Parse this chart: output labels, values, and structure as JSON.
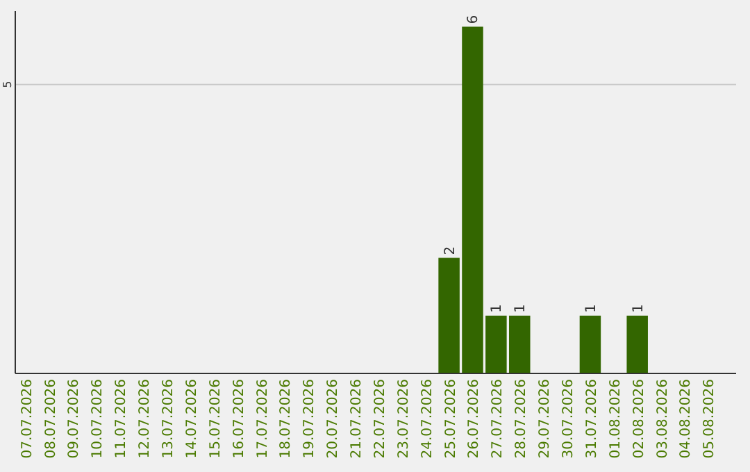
{
  "chart_data": {
    "type": "bar",
    "categories": [
      "07.07.2026",
      "08.07.2026",
      "09.07.2026",
      "10.07.2026",
      "11.07.2026",
      "12.07.2026",
      "13.07.2026",
      "14.07.2026",
      "15.07.2026",
      "16.07.2026",
      "17.07.2026",
      "18.07.2026",
      "19.07.2026",
      "20.07.2026",
      "21.07.2026",
      "22.07.2026",
      "23.07.2026",
      "24.07.2026",
      "25.07.2026",
      "26.07.2026",
      "27.07.2026",
      "28.07.2026",
      "29.07.2026",
      "30.07.2026",
      "31.07.2026",
      "01.08.2026",
      "02.08.2026",
      "03.08.2026",
      "04.08.2026",
      "05.08.2026"
    ],
    "values": [
      null,
      null,
      null,
      null,
      null,
      null,
      null,
      null,
      null,
      null,
      null,
      null,
      null,
      null,
      null,
      null,
      null,
      null,
      2,
      6,
      1,
      1,
      null,
      null,
      1,
      null,
      1,
      null,
      null,
      null
    ],
    "value_labels": [
      null,
      null,
      null,
      null,
      null,
      null,
      null,
      null,
      null,
      null,
      null,
      null,
      null,
      null,
      null,
      null,
      null,
      null,
      "2",
      "6",
      "1",
      "1",
      null,
      null,
      "1",
      null,
      "1",
      null,
      null,
      null
    ],
    "color": "#336600",
    "ylim": [
      0,
      6.27
    ],
    "yticks": [
      5
    ],
    "grid": "y"
  }
}
